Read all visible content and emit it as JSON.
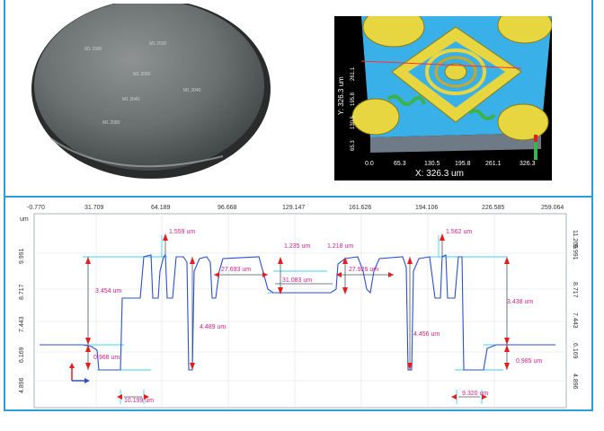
{
  "wafer": {
    "die_labels": [
      "M1 2080",
      "M1 2030",
      "M1 2060",
      "M1 2040",
      "M1 2040",
      "M1 2080"
    ]
  },
  "map3d": {
    "x_axis_title": "X: 326.3 um",
    "y_axis_title": "Y: 326.3 um",
    "x_ticks": [
      "0.0",
      "65.3",
      "130.5",
      "195.8",
      "261.1",
      "326.3"
    ],
    "y_ticks": [
      "261.1",
      "195.8",
      "130.5",
      "65.3"
    ],
    "colors": {
      "base": "#3ab0e8",
      "mesa": "#e7d640",
      "green": "#3cb34a",
      "background": "#000000"
    }
  },
  "profile": {
    "x_ticks": [
      "-0.770",
      "31.709",
      "64.189",
      "96.668",
      "129.147",
      "161.626",
      "194.106",
      "226.585",
      "259.064"
    ],
    "y_unit": "um",
    "y_ticks": [
      "11.265",
      "9.991",
      "8.717",
      "7.443",
      "6.169",
      "4.896"
    ],
    "measurements": [
      "1.559 um",
      "1.235 um",
      "1.218 um",
      "1.562 um",
      "3.454 um",
      "27.693 um",
      "31.083 um",
      "27.926 um",
      "3.438 um",
      "4.489 um",
      "4.456 um",
      "0.968 um",
      "0.985 um",
      "10.199 um",
      "9.320 um"
    ],
    "colors": {
      "trace": "#2b4fd0",
      "measure": "#d0228a",
      "guide": "#3fd2ee",
      "arrow": "#e02020"
    }
  }
}
